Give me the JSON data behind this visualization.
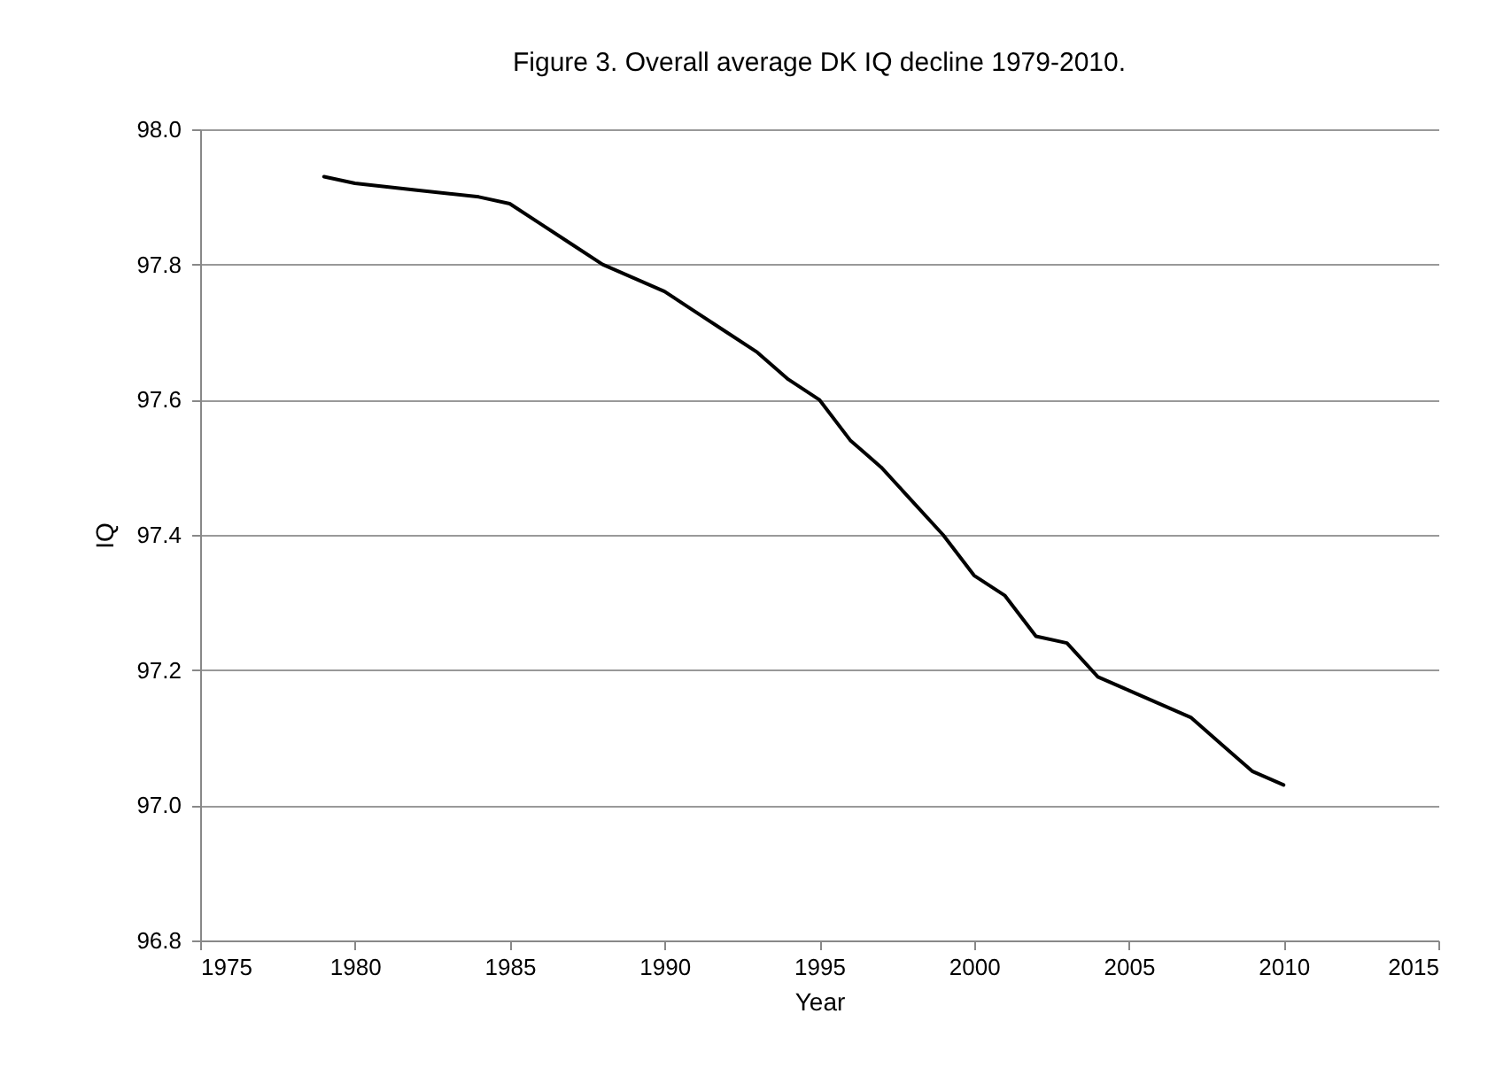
{
  "chart_data": {
    "type": "line",
    "title": "Figure 3. Overall average DK IQ decline 1979-2010.",
    "xlabel": "Year",
    "ylabel": "IQ",
    "x": [
      1979,
      1980,
      1982,
      1984,
      1985,
      1986,
      1987,
      1988,
      1989,
      1990,
      1991,
      1992,
      1993,
      1994,
      1995,
      1996,
      1997,
      1998,
      1999,
      2000,
      2001,
      2002,
      2003,
      2004,
      2005,
      2006,
      2007,
      2008,
      2009,
      2010
    ],
    "series": [
      {
        "color": "#000000",
        "values": [
          97.93,
          97.92,
          97.91,
          97.9,
          97.89,
          97.86,
          97.83,
          97.8,
          97.78,
          97.76,
          97.73,
          97.7,
          97.67,
          97.63,
          97.6,
          97.54,
          97.5,
          97.45,
          97.4,
          97.34,
          97.31,
          97.25,
          97.24,
          97.19,
          97.17,
          97.15,
          97.13,
          97.09,
          97.05,
          97.03
        ]
      }
    ],
    "xlim": [
      1975,
      2015
    ],
    "xticks": [
      1975,
      1980,
      1985,
      1990,
      1995,
      2000,
      2005,
      2010,
      2015
    ],
    "ylim": [
      96.8,
      98.0
    ],
    "yticks": [
      {
        "value": 96.8,
        "label": "96.8"
      },
      {
        "value": 97.0,
        "label": "97.0"
      },
      {
        "value": 97.2,
        "label": "97.2"
      },
      {
        "value": 97.4,
        "label": "97.4"
      },
      {
        "value": 97.6,
        "label": "97.6"
      },
      {
        "value": 97.8,
        "label": "97.8"
      },
      {
        "value": 98.0,
        "label": "98.0"
      }
    ],
    "grid": "y",
    "marker": "none",
    "line_style": "solid"
  }
}
